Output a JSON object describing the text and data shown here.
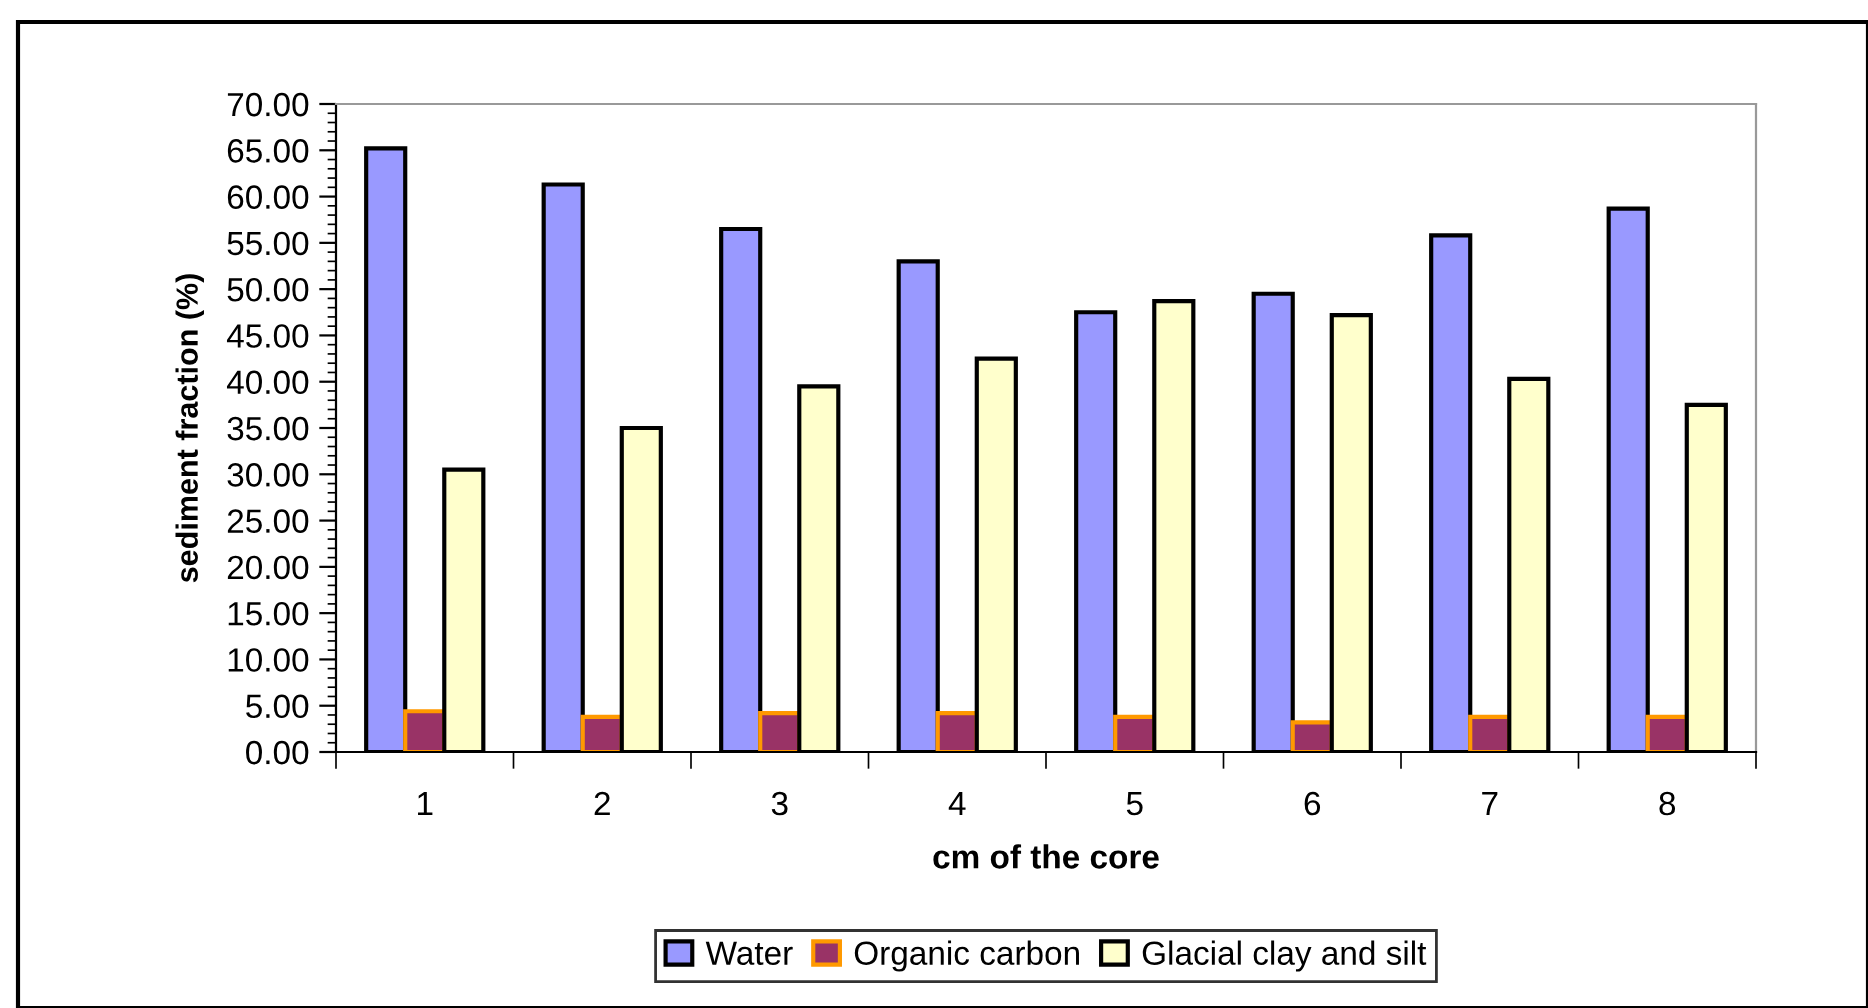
{
  "chart_data": {
    "type": "bar",
    "xlabel": "cm of the core",
    "ylabel": "sediment fraction (%)",
    "categories": [
      "1",
      "2",
      "3",
      "4",
      "5",
      "6",
      "7",
      "8"
    ],
    "series": [
      {
        "name": "Water",
        "color": "#9999ff",
        "values": [
          65.2,
          61.3,
          56.5,
          53.0,
          47.5,
          49.5,
          55.8,
          58.7
        ]
      },
      {
        "name": "Organic carbon",
        "color": "#993366",
        "values": [
          4.4,
          3.8,
          4.2,
          4.2,
          3.8,
          3.2,
          3.8,
          3.8
        ]
      },
      {
        "name": "Glacial clay and silt",
        "color": "#ffffcc",
        "values": [
          30.5,
          35.0,
          39.5,
          42.5,
          48.7,
          47.2,
          40.3,
          37.5
        ]
      }
    ],
    "ylim": [
      0,
      70
    ],
    "yticks": [
      {
        "value": 0,
        "label": "0.00"
      },
      {
        "value": 5,
        "label": "5.00"
      },
      {
        "value": 10,
        "label": "10.00"
      },
      {
        "value": 15,
        "label": "15.00"
      },
      {
        "value": 20,
        "label": "20.00"
      },
      {
        "value": 25,
        "label": "25.00"
      },
      {
        "value": 30,
        "label": "30.00"
      },
      {
        "value": 35,
        "label": "35.00"
      },
      {
        "value": 40,
        "label": "40.00"
      },
      {
        "value": 45,
        "label": "45.00"
      },
      {
        "value": 50,
        "label": "50.00"
      },
      {
        "value": 55,
        "label": "55.00"
      },
      {
        "value": 60,
        "label": "60.00"
      },
      {
        "value": 65,
        "label": "65.00"
      },
      {
        "value": 70,
        "label": "70.00"
      }
    ],
    "grid": false,
    "legend": "bottom"
  }
}
